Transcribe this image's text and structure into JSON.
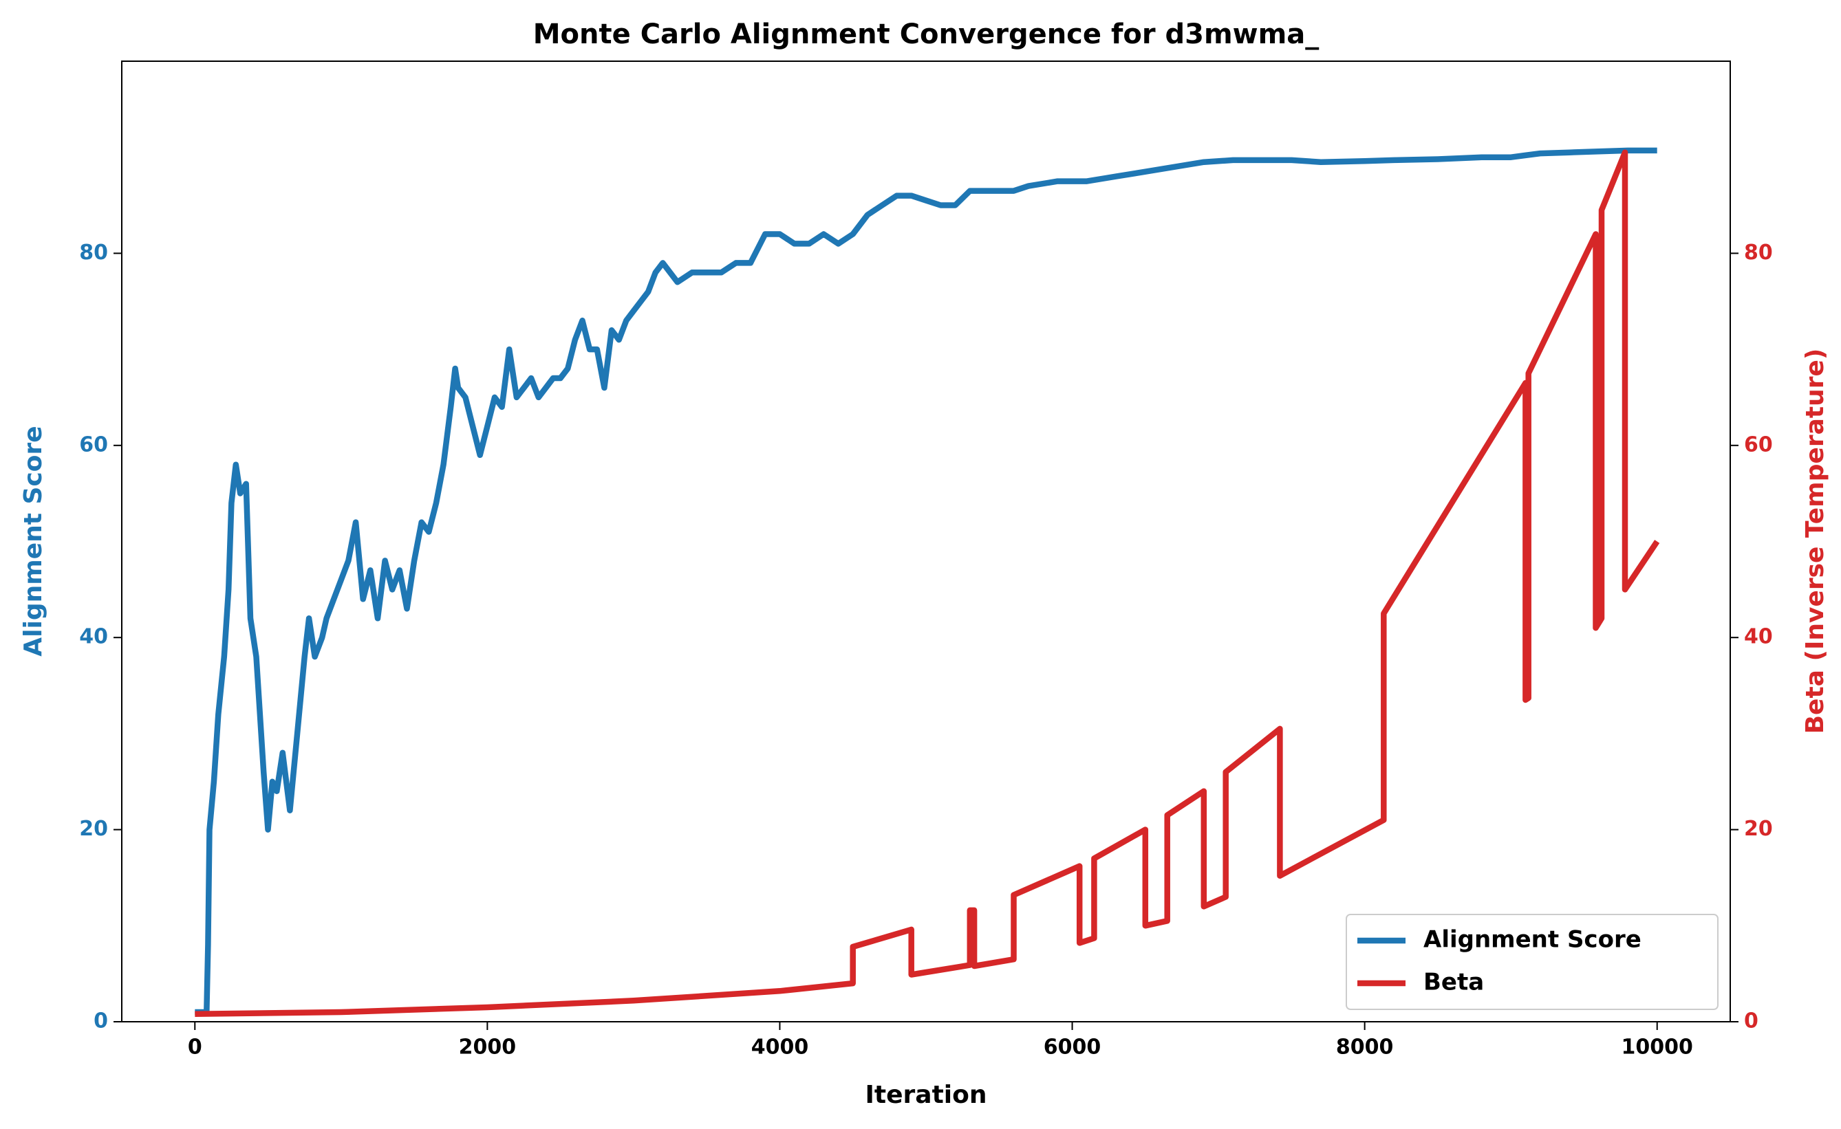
{
  "chart_data": {
    "type": "line",
    "title": "Monte Carlo Alignment Convergence for d3mwma_",
    "xlabel": "Iteration",
    "ylabel": "Alignment Score",
    "y2label": "Beta (Inverse Temperature)",
    "xlim": [
      -500,
      10500
    ],
    "ylim": [
      0,
      100
    ],
    "y2lim": [
      0,
      100
    ],
    "xticks": [
      0,
      2000,
      4000,
      6000,
      8000,
      10000
    ],
    "yticks": [
      0,
      20,
      40,
      60,
      80
    ],
    "y2ticks": [
      0,
      20,
      40,
      60,
      80
    ],
    "legend": "lower right",
    "series": [
      {
        "name": "Alignment Score",
        "color": "#1f77b4",
        "x": [
          0,
          80,
          90,
          100,
          130,
          160,
          200,
          230,
          250,
          280,
          310,
          350,
          380,
          420,
          470,
          500,
          530,
          560,
          600,
          650,
          700,
          750,
          780,
          820,
          870,
          900,
          950,
          1000,
          1050,
          1100,
          1150,
          1200,
          1250,
          1300,
          1350,
          1400,
          1450,
          1500,
          1550,
          1600,
          1650,
          1700,
          1750,
          1780,
          1800,
          1850,
          1900,
          1950,
          2000,
          2050,
          2100,
          2150,
          2200,
          2250,
          2300,
          2350,
          2400,
          2450,
          2500,
          2550,
          2600,
          2650,
          2700,
          2750,
          2800,
          2850,
          2900,
          2950,
          3000,
          3050,
          3100,
          3150,
          3200,
          3300,
          3400,
          3500,
          3600,
          3700,
          3800,
          3900,
          4000,
          4100,
          4200,
          4300,
          4400,
          4500,
          4600,
          4700,
          4800,
          4900,
          5000,
          5100,
          5200,
          5300,
          5400,
          5600,
          5700,
          5900,
          6100,
          6300,
          6500,
          6700,
          6900,
          7100,
          7300,
          7500,
          7700,
          8000,
          8200,
          8500,
          8800,
          9000,
          9100,
          9200,
          9400,
          9600,
          9800,
          10000
        ],
        "values": [
          1,
          1,
          8,
          20,
          25,
          32,
          38,
          45,
          54,
          58,
          55,
          56,
          42,
          38,
          26,
          20,
          25,
          24,
          28,
          22,
          30,
          38,
          42,
          38,
          40,
          42,
          44,
          46,
          48,
          52,
          44,
          47,
          42,
          48,
          45,
          47,
          43,
          48,
          52,
          51,
          54,
          58,
          64,
          68,
          66,
          65,
          62,
          59,
          62,
          65,
          64,
          70,
          65,
          66,
          67,
          65,
          66,
          67,
          67,
          68,
          71,
          73,
          70,
          70,
          66,
          72,
          71,
          73,
          74,
          75,
          76,
          78,
          79,
          77,
          78,
          78,
          78,
          79,
          79,
          82,
          82,
          81,
          81,
          82,
          81,
          82,
          84,
          85,
          86,
          86,
          85.5,
          85,
          85,
          86.5,
          86.5,
          86.5,
          87,
          87.5,
          87.5,
          88,
          88.5,
          89,
          89.5,
          89.7,
          89.7,
          89.7,
          89.5,
          89.6,
          89.7,
          89.8,
          90,
          90,
          90.2,
          90.4,
          90.5,
          90.6,
          90.7,
          90.7
        ]
      },
      {
        "name": "Beta",
        "color": "#d62728",
        "axis": "y2",
        "x": [
          0,
          1000,
          2000,
          3000,
          4000,
          4500,
          4500,
          4900,
          4900,
          5300,
          5300,
          5330,
          5330,
          5600,
          5600,
          6050,
          6050,
          6150,
          6150,
          6500,
          6500,
          6650,
          6650,
          6900,
          6900,
          7050,
          7050,
          7420,
          7420,
          8130,
          8130,
          9100,
          9100,
          9120,
          9120,
          9580,
          9580,
          9620,
          9620,
          9780,
          9780,
          10000
        ],
        "values": [
          0.8,
          1.0,
          1.5,
          2.2,
          3.2,
          4.0,
          7.8,
          9.6,
          4.9,
          5.9,
          11.6,
          11.6,
          5.8,
          6.5,
          13.2,
          16.2,
          8.2,
          8.7,
          17.0,
          20.0,
          10.0,
          10.5,
          21.5,
          24.0,
          12.0,
          13.0,
          26.0,
          30.5,
          15.2,
          21.0,
          42.5,
          66.5,
          33.5,
          33.7,
          67.5,
          82.0,
          41.0,
          42.0,
          84.5,
          90.5,
          45.0,
          50.0
        ]
      }
    ]
  }
}
